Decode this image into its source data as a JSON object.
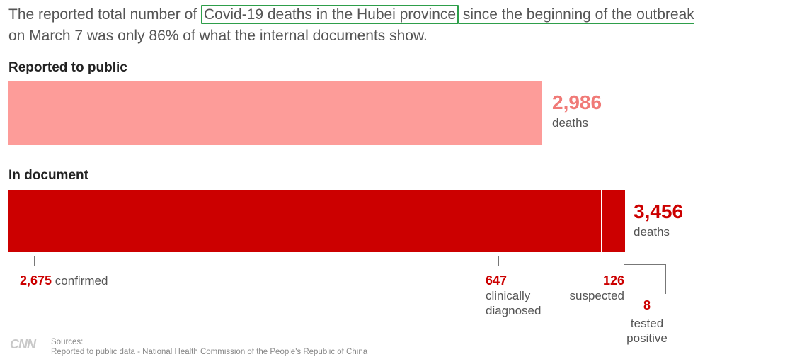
{
  "headline": {
    "pre": "The reported total number of ",
    "highlight": "Covid-19 deaths in the Hubei province",
    "post_underlined": " since the beginning of the outbreak",
    "line2": "on March 7 was only 86% of what the internal documents show."
  },
  "colors": {
    "public_bar": "#fd9c99",
    "document_bar": "#cc0000",
    "public_text": "#f07a77",
    "document_text": "#cc0000",
    "highlight_box": "#2e9e4a"
  },
  "chart_data": {
    "type": "bar",
    "title": "",
    "groups": [
      {
        "label": "Reported to public",
        "total": 2986,
        "total_label": "2,986",
        "unit": "deaths",
        "segments": [
          {
            "name": "",
            "value": 2986
          }
        ]
      },
      {
        "label": "In document",
        "total": 3456,
        "total_label": "3,456",
        "unit": "deaths",
        "segments": [
          {
            "name": "confirmed",
            "value": 2675,
            "value_label": "2,675",
            "text_lines": [
              "confirmed"
            ]
          },
          {
            "name": "clinically diagnosed",
            "value": 647,
            "value_label": "647",
            "text_lines": [
              "clinically",
              "diagnosed"
            ]
          },
          {
            "name": "suspected",
            "value": 126,
            "value_label": "126",
            "text_lines": [
              "suspected"
            ]
          },
          {
            "name": "tested positive",
            "value": 8,
            "value_label": "8",
            "text_lines": [
              "tested",
              "positive"
            ]
          }
        ]
      }
    ],
    "xlim": [
      0,
      3456
    ]
  },
  "footer": {
    "logo": "CNN",
    "sources_label": "Sources:",
    "sources_line1": "Reported to public data - National Health Commission of the People's Republic of China"
  }
}
